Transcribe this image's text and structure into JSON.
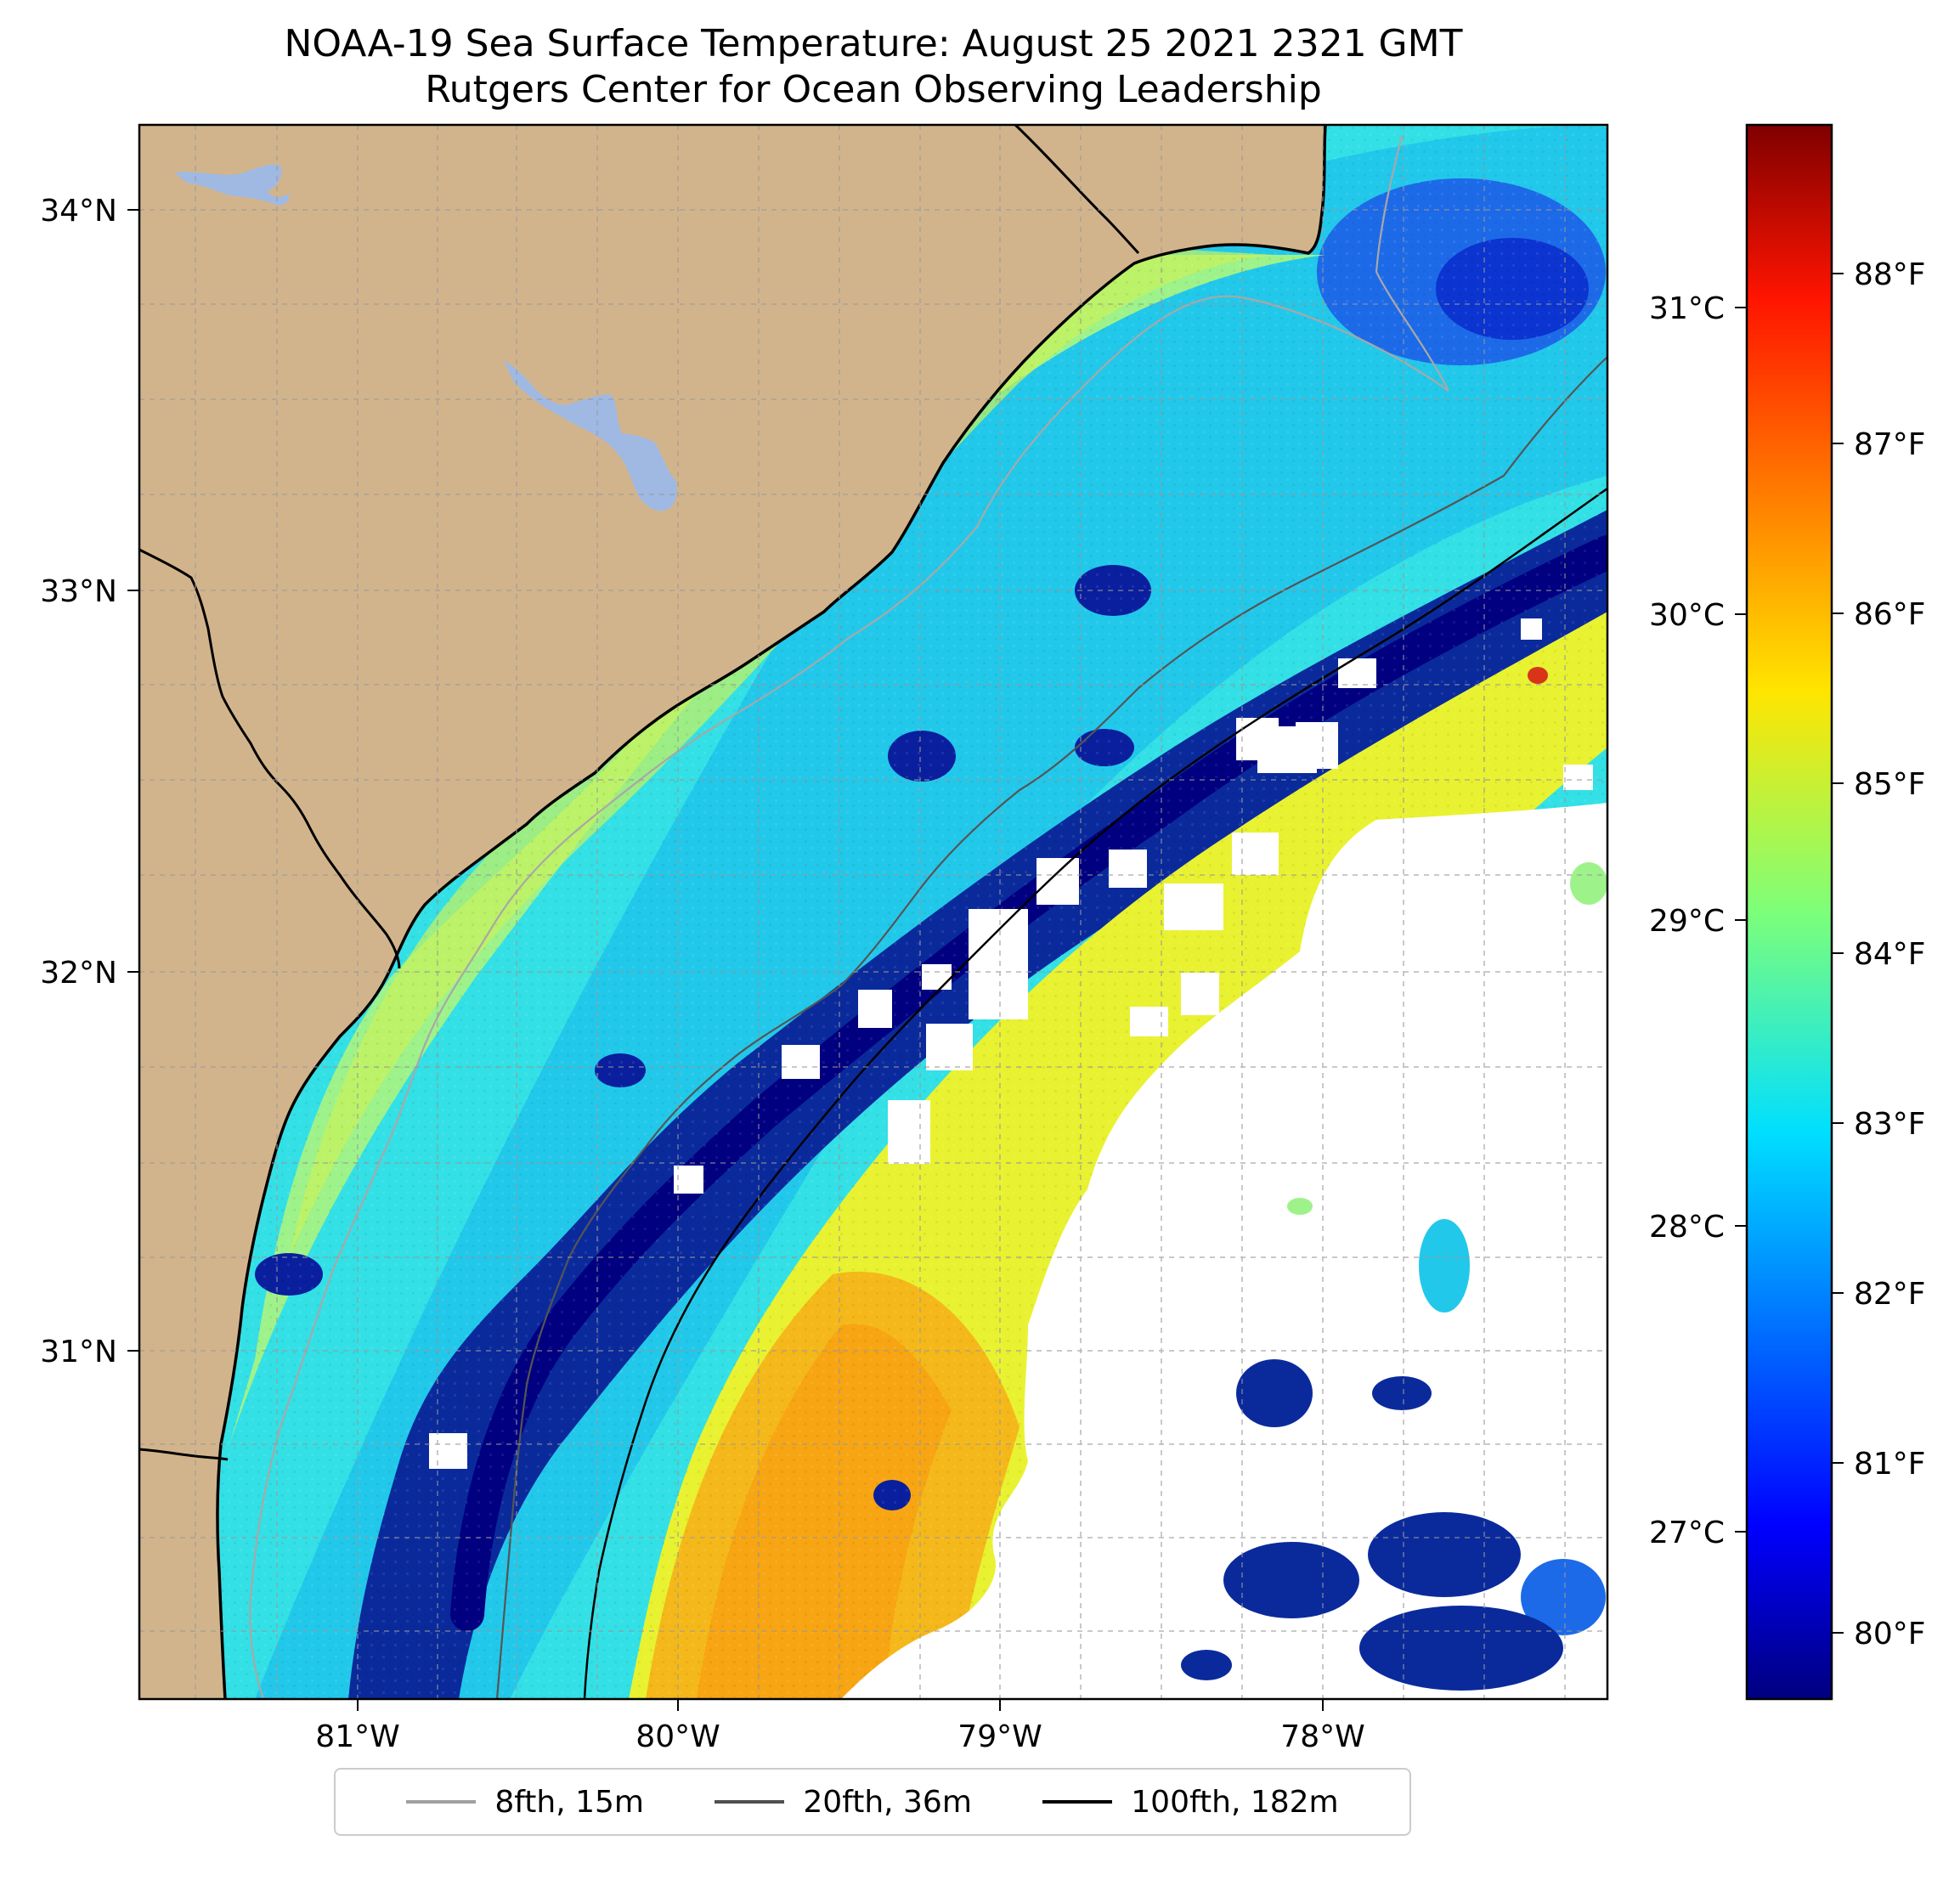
{
  "title": "NOAA-19 Sea Surface Temperature: August 25 2021 2321 GMT",
  "subtitle": "Rutgers Center for Ocean Observing Leadership",
  "axes": {
    "lat_ticks": [
      "34°N",
      "33°N",
      "32°N",
      "31°N"
    ],
    "lon_ticks": [
      "81°W",
      "80°W",
      "79°W",
      "78°W"
    ],
    "lat_values": [
      34,
      33,
      32,
      31
    ],
    "lon_values": [
      -81,
      -80,
      -79,
      -78
    ]
  },
  "colorbar": {
    "celsius_ticks": [
      "31°C",
      "30°C",
      "29°C",
      "28°C",
      "27°C"
    ],
    "fahrenheit_ticks": [
      "88°F",
      "87°F",
      "86°F",
      "85°F",
      "84°F",
      "83°F",
      "82°F",
      "81°F",
      "80°F"
    ],
    "colormap": "jet"
  },
  "legend": [
    {
      "label": "8fth, 15m",
      "color": "#a0a0a0"
    },
    {
      "label": "20fth, 36m",
      "color": "#505050"
    },
    {
      "label": "100fth, 182m",
      "color": "#000000"
    }
  ],
  "colors": {
    "land": "#d2b48c",
    "water_body": "#9fb9e3",
    "no_data": "#ffffff"
  }
}
